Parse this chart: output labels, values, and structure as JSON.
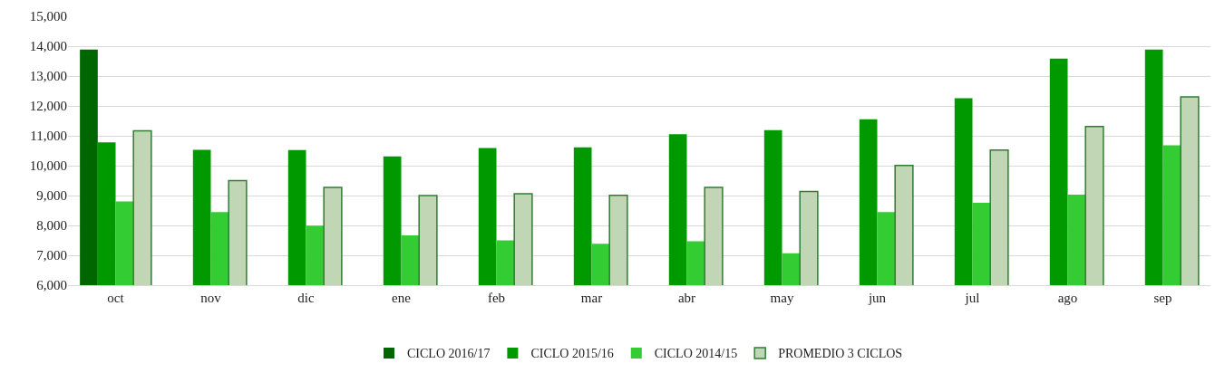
{
  "chart_data": {
    "type": "bar",
    "categories": [
      "oct",
      "nov",
      "dic",
      "ene",
      "feb",
      "mar",
      "abr",
      "may",
      "jun",
      "jul",
      "ago",
      "sep"
    ],
    "series": [
      {
        "name": "CICLO 2016/17",
        "color": "#006600",
        "values": [
          13890,
          null,
          null,
          null,
          null,
          null,
          null,
          null,
          null,
          null,
          null,
          null
        ]
      },
      {
        "name": "CICLO 2015/16",
        "color": "#009900",
        "values": [
          10780,
          10530,
          10520,
          10310,
          10590,
          10610,
          11050,
          11190,
          11550,
          12260,
          13580,
          13890
        ]
      },
      {
        "name": "CICLO 2014/15",
        "color": "#33cc33",
        "values": [
          8800,
          8450,
          7990,
          7670,
          7500,
          7390,
          7470,
          7070,
          8450,
          8760,
          9030,
          10680
        ]
      },
      {
        "name": "PROMEDIO 3 CICLOS",
        "color": "#c0d6b4",
        "values": [
          11170,
          9500,
          9270,
          9000,
          9060,
          9010,
          9270,
          9140,
          10010,
          10520,
          11310,
          12300
        ]
      }
    ],
    "ylim": [
      6000,
      15000
    ],
    "yticks": [
      {
        "value": 6000,
        "label": "6,000"
      },
      {
        "value": 7000,
        "label": "7,000"
      },
      {
        "value": 8000,
        "label": "8,000"
      },
      {
        "value": 9000,
        "label": "9,000"
      },
      {
        "value": 10000,
        "label": "10,000"
      },
      {
        "value": 11000,
        "label": "11,000"
      },
      {
        "value": 12000,
        "label": "12,000"
      },
      {
        "value": 13000,
        "label": "13,000"
      },
      {
        "value": 14000,
        "label": "14,000"
      },
      {
        "value": 15000,
        "label": "15,000"
      }
    ],
    "grid": "y",
    "legend": "bottom"
  }
}
